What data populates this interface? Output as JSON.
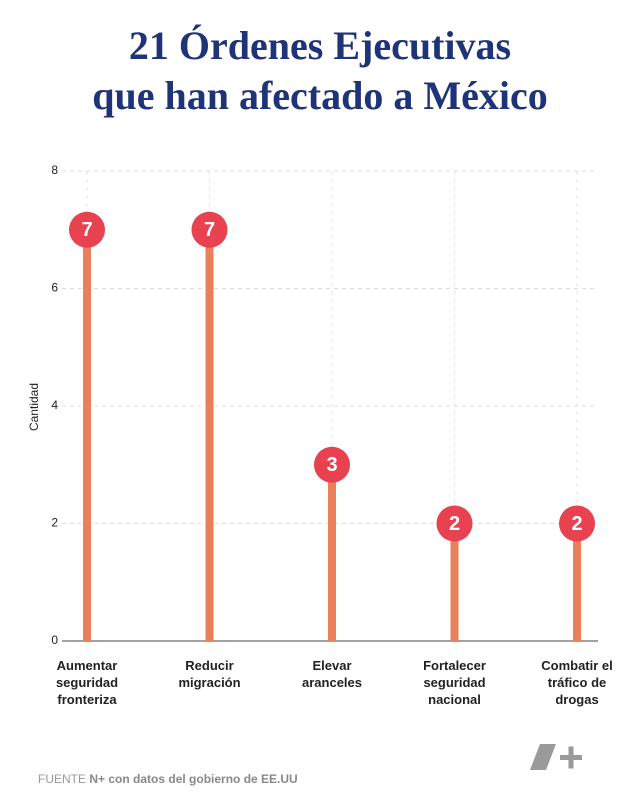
{
  "chart_data": {
    "type": "lollipop",
    "title": [
      "21 Órdenes Ejecutivas",
      "que han afectado a México"
    ],
    "y_label": "Cantidad",
    "categories": [
      "Aumentar seguridad fronteriza",
      "Reducir migración",
      "Elevar aranceles",
      "Fortalecer seguridad nacional",
      "Combatir el tráfico de drogas"
    ],
    "values": [
      7,
      7,
      3,
      2,
      2
    ],
    "color": "#e8805a",
    "marker_color": "#e8414f",
    "ylim": [
      0,
      8
    ],
    "yticks": [
      0,
      2,
      4,
      6,
      8
    ],
    "grid": true,
    "source_label": "FUENTE",
    "source": "N+ con datos del gobierno de EE.UU"
  }
}
